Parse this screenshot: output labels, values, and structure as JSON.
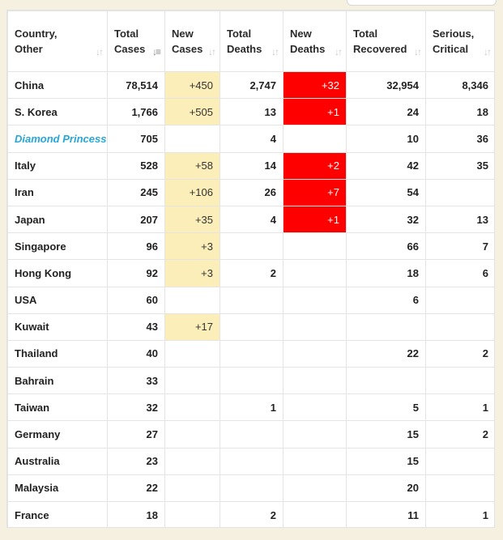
{
  "headers": [
    {
      "lines": [
        "Country,",
        "Other"
      ],
      "sort_icon": "sort-icon",
      "active": false
    },
    {
      "lines": [
        "Total",
        "Cases"
      ],
      "sort_icon": "sort-desc-icon",
      "active": true
    },
    {
      "lines": [
        "New",
        "Cases"
      ],
      "sort_icon": "sort-icon",
      "active": false
    },
    {
      "lines": [
        "Total",
        "Deaths"
      ],
      "sort_icon": "sort-icon",
      "active": false
    },
    {
      "lines": [
        "New",
        "Deaths"
      ],
      "sort_icon": "sort-icon",
      "active": false
    },
    {
      "lines": [
        "Total",
        "Recovered"
      ],
      "sort_icon": "sort-icon",
      "active": false
    },
    {
      "lines": [
        "Serious,",
        "Critical"
      ],
      "sort_icon": "sort-icon",
      "active": false
    }
  ],
  "colors": {
    "new_cases_highlight": "#fbeeb8",
    "new_deaths_highlight": "#ff0000",
    "special_country": "#27a7d8",
    "page_background": "#f6f0e0"
  },
  "rows": [
    {
      "country": "China",
      "total_cases": "78,514",
      "new_cases": "+450",
      "total_deaths": "2,747",
      "new_deaths": "+32",
      "total_recovered": "32,954",
      "serious_critical": "8,346"
    },
    {
      "country": "S. Korea",
      "total_cases": "1,766",
      "new_cases": "+505",
      "total_deaths": "13",
      "new_deaths": "+1",
      "total_recovered": "24",
      "serious_critical": "18"
    },
    {
      "country": "Diamond Princess",
      "special": true,
      "total_cases": "705",
      "new_cases": "",
      "total_deaths": "4",
      "new_deaths": "",
      "total_recovered": "10",
      "serious_critical": "36"
    },
    {
      "country": "Italy",
      "total_cases": "528",
      "new_cases": "+58",
      "total_deaths": "14",
      "new_deaths": "+2",
      "total_recovered": "42",
      "serious_critical": "35"
    },
    {
      "country": "Iran",
      "total_cases": "245",
      "new_cases": "+106",
      "total_deaths": "26",
      "new_deaths": "+7",
      "total_recovered": "54",
      "serious_critical": ""
    },
    {
      "country": "Japan",
      "total_cases": "207",
      "new_cases": "+35",
      "total_deaths": "4",
      "new_deaths": "+1",
      "total_recovered": "32",
      "serious_critical": "13"
    },
    {
      "country": "Singapore",
      "total_cases": "96",
      "new_cases": "+3",
      "total_deaths": "",
      "new_deaths": "",
      "total_recovered": "66",
      "serious_critical": "7"
    },
    {
      "country": "Hong Kong",
      "total_cases": "92",
      "new_cases": "+3",
      "total_deaths": "2",
      "new_deaths": "",
      "total_recovered": "18",
      "serious_critical": "6"
    },
    {
      "country": "USA",
      "total_cases": "60",
      "new_cases": "",
      "total_deaths": "",
      "new_deaths": "",
      "total_recovered": "6",
      "serious_critical": ""
    },
    {
      "country": "Kuwait",
      "total_cases": "43",
      "new_cases": "+17",
      "total_deaths": "",
      "new_deaths": "",
      "total_recovered": "",
      "serious_critical": ""
    },
    {
      "country": "Thailand",
      "total_cases": "40",
      "new_cases": "",
      "total_deaths": "",
      "new_deaths": "",
      "total_recovered": "22",
      "serious_critical": "2"
    },
    {
      "country": "Bahrain",
      "total_cases": "33",
      "new_cases": "",
      "total_deaths": "",
      "new_deaths": "",
      "total_recovered": "",
      "serious_critical": ""
    },
    {
      "country": "Taiwan",
      "total_cases": "32",
      "new_cases": "",
      "total_deaths": "1",
      "new_deaths": "",
      "total_recovered": "5",
      "serious_critical": "1"
    },
    {
      "country": "Germany",
      "total_cases": "27",
      "new_cases": "",
      "total_deaths": "",
      "new_deaths": "",
      "total_recovered": "15",
      "serious_critical": "2"
    },
    {
      "country": "Australia",
      "total_cases": "23",
      "new_cases": "",
      "total_deaths": "",
      "new_deaths": "",
      "total_recovered": "15",
      "serious_critical": ""
    },
    {
      "country": "Malaysia",
      "total_cases": "22",
      "new_cases": "",
      "total_deaths": "",
      "new_deaths": "",
      "total_recovered": "20",
      "serious_critical": ""
    },
    {
      "country": "France",
      "total_cases": "18",
      "new_cases": "",
      "total_deaths": "2",
      "new_deaths": "",
      "total_recovered": "11",
      "serious_critical": "1"
    }
  ]
}
